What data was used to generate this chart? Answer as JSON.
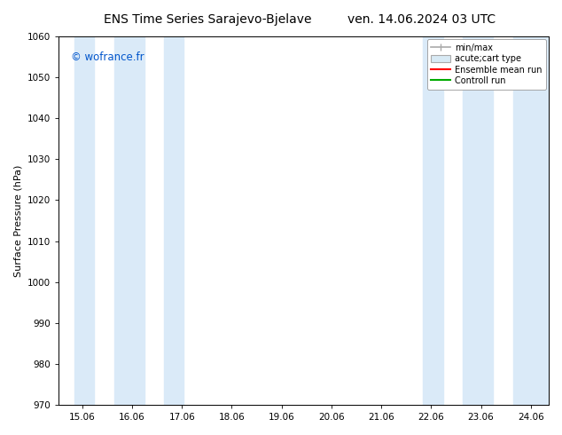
{
  "title_left": "ENS Time Series Sarajevo-Bjelave",
  "title_right": "ven. 14.06.2024 03 UTC",
  "ylabel": "Surface Pressure (hPa)",
  "ylim": [
    970,
    1060
  ],
  "yticks": [
    970,
    980,
    990,
    1000,
    1010,
    1020,
    1030,
    1040,
    1050,
    1060
  ],
  "xlim_start": 14.58,
  "xlim_end": 24.42,
  "xtick_labels": [
    "15.06",
    "16.06",
    "17.06",
    "18.06",
    "19.06",
    "20.06",
    "21.06",
    "22.06",
    "23.06",
    "24.06"
  ],
  "xtick_positions": [
    15.06,
    16.06,
    17.06,
    18.06,
    19.06,
    20.06,
    21.06,
    22.06,
    23.06,
    24.06
  ],
  "shaded_bands": [
    {
      "x_start": 14.9,
      "x_end": 15.3,
      "color": "#daeaf8"
    },
    {
      "x_start": 15.7,
      "x_end": 16.3,
      "color": "#daeaf8"
    },
    {
      "x_start": 16.7,
      "x_end": 17.1,
      "color": "#daeaf8"
    },
    {
      "x_start": 21.9,
      "x_end": 22.3,
      "color": "#daeaf8"
    },
    {
      "x_start": 22.7,
      "x_end": 23.3,
      "color": "#daeaf8"
    },
    {
      "x_start": 23.7,
      "x_end": 24.42,
      "color": "#daeaf8"
    }
  ],
  "legend_labels": [
    "min/max",
    "acute;cart type",
    "Ensemble mean run",
    "Controll run"
  ],
  "watermark": "© wofrance.fr",
  "watermark_color": "#0055cc",
  "bg_color": "#ffffff",
  "plot_bg_color": "#ffffff",
  "title_fontsize": 10,
  "label_fontsize": 8,
  "tick_fontsize": 7.5
}
